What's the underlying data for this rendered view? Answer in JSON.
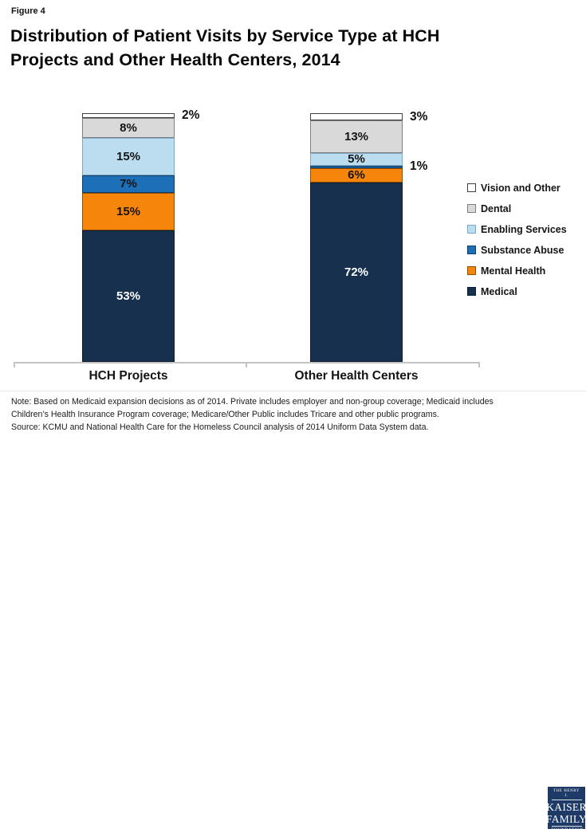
{
  "figure_label": "Figure 4",
  "title_lines": [
    "Distribution of Patient Visits by Service Type at HCH",
    "Projects and Other Health Centers, 2014"
  ],
  "chart_data": {
    "type": "bar",
    "subtype": "stacked-100",
    "unit": "%",
    "title": "Distribution of Patient Visits by Service Type at HCH Projects and Other Health Centers, 2014",
    "categories": [
      "HCH Projects",
      "Other Health Centers"
    ],
    "series": [
      {
        "name": "Medical",
        "color": "#16304e",
        "border": "#0c1d31",
        "text_color": "#ffffff",
        "values": [
          53,
          72
        ]
      },
      {
        "name": "Mental Health",
        "color": "#f5860b",
        "border": "#8f4f07",
        "text_color": "#141414",
        "values": [
          15,
          6
        ]
      },
      {
        "name": "Substance Abuse",
        "color": "#1d70b8",
        "border": "#123f66",
        "text_color": "#141414",
        "values": [
          7,
          1
        ]
      },
      {
        "name": "Enabling Services",
        "color": "#bcdcf0",
        "border": "#7fa8c4",
        "text_color": "#141414",
        "values": [
          15,
          5
        ]
      },
      {
        "name": "Dental",
        "color": "#d9d9d9",
        "border": "#7f7f7f",
        "text_color": "#141414",
        "values": [
          8,
          13
        ]
      },
      {
        "name": "Vision and Other",
        "color": "#ffffff",
        "border": "#3f3f3f",
        "text_color": "#141414",
        "values": [
          2,
          3
        ]
      }
    ],
    "legend_order": [
      "Vision and Other",
      "Dental",
      "Enabling Services",
      "Substance Abuse",
      "Mental Health",
      "Medical"
    ],
    "legend_position": "right",
    "ylim": [
      0,
      100
    ],
    "grid": false,
    "outside_label_threshold": 4,
    "data_labels": {
      "HCH Projects": {
        "Medical": "53%",
        "Mental Health": "15%",
        "Substance Abuse": "7%",
        "Enabling Services": "15%",
        "Dental": "8%",
        "Vision and Other": "2%"
      },
      "Other Health Centers": {
        "Medical": "72%",
        "Mental Health": "6%",
        "Substance Abuse": "1%",
        "Enabling Services": "5%",
        "Dental": "13%",
        "Vision and Other": "3%"
      }
    }
  },
  "footer": {
    "lines": [
      "Note: Based on Medicaid expansion decisions as of 2014. Private includes employer and non-group coverage; Medicaid includes",
      "Children’s Health Insurance Program coverage; Medicare/Other Public includes Tricare and other public programs.",
      "Source: KCMU and National Health Care for the Homeless Council analysis of 2014 Uniform Data System data."
    ]
  },
  "logo": {
    "top": "THE HENRY J.",
    "name_line1": "KAISER",
    "name_line2": "FAMILY",
    "bottom": "FOUNDATION",
    "background": "#1e3a66"
  }
}
